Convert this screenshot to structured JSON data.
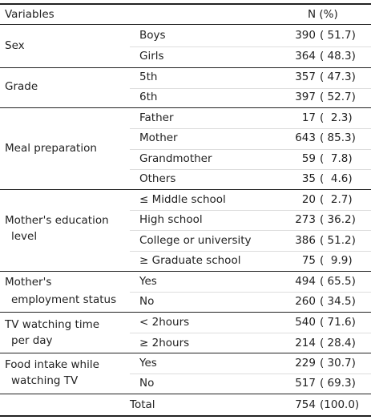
{
  "header": {
    "variables": "Variables",
    "n_pct": "N (%)"
  },
  "groups": [
    {
      "name": "Sex",
      "rows": [
        {
          "label": "Boys",
          "n": "390",
          "pct": "( 51.7)"
        },
        {
          "label": "Girls",
          "n": "364",
          "pct": "( 48.3)"
        }
      ]
    },
    {
      "name": "Grade",
      "rows": [
        {
          "label": "5th",
          "n": "357",
          "pct": "( 47.3)"
        },
        {
          "label": "6th",
          "n": "397",
          "pct": "( 52.7)"
        }
      ]
    },
    {
      "name": "Meal preparation",
      "rows": [
        {
          "label": "Father",
          "n": "17",
          "pct": "(  2.3)"
        },
        {
          "label": "Mother",
          "n": "643",
          "pct": "( 85.3)"
        },
        {
          "label": "Grandmother",
          "n": "59",
          "pct": "(  7.8)"
        },
        {
          "label": "Others",
          "n": "35",
          "pct": "(  4.6)"
        }
      ]
    },
    {
      "name_line1": "Mother's education",
      "name_line2": "level",
      "rows": [
        {
          "label": "≤ Middle school",
          "n": "20",
          "pct": "(  2.7)"
        },
        {
          "label": "High school",
          "n": "273",
          "pct": "( 36.2)"
        },
        {
          "label": "College or university",
          "n": "386",
          "pct": "( 51.2)"
        },
        {
          "label": "≥ Graduate school",
          "n": "75",
          "pct": "(  9.9)"
        }
      ]
    },
    {
      "name_line1": "Mother's",
      "name_line2": "employment status",
      "rows": [
        {
          "label": "Yes",
          "n": "494",
          "pct": "( 65.5)"
        },
        {
          "label": "No",
          "n": "260",
          "pct": "( 34.5)"
        }
      ]
    },
    {
      "name_line1": "TV watching time",
      "name_line2": "per day",
      "rows": [
        {
          "label": "< 2hours",
          "n": "540",
          "pct": "( 71.6)"
        },
        {
          "label": "≥ 2hours",
          "n": "214",
          "pct": "( 28.4)"
        }
      ]
    },
    {
      "name_line1": "Food intake while",
      "name_line2": "watching TV",
      "rows": [
        {
          "label": "Yes",
          "n": "229",
          "pct": "( 30.7)"
        },
        {
          "label": "No",
          "n": "517",
          "pct": "( 69.3)"
        }
      ]
    }
  ],
  "total": {
    "label": "Total",
    "n": "754",
    "pct": "(100.0)"
  }
}
